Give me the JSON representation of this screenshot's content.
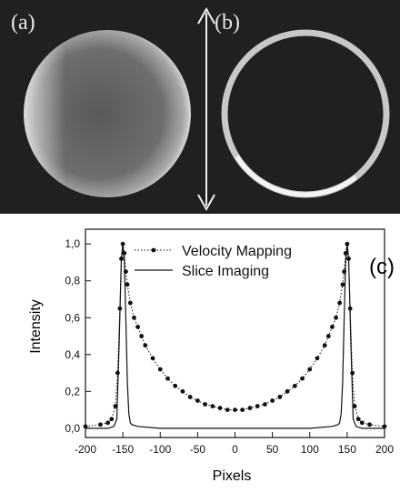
{
  "images": {
    "panel_a_label": "(a)",
    "panel_b_label": "(b)"
  },
  "chart_data": {
    "type": "line",
    "panel_label": "(c)",
    "xlabel": "Pixels",
    "ylabel": "Intensity",
    "xlim": [
      -200,
      200
    ],
    "ylim": [
      -0.05,
      1.08
    ],
    "x_ticks": [
      -200,
      -150,
      -100,
      -50,
      0,
      50,
      100,
      150,
      200
    ],
    "x_tick_labels": [
      "-200",
      "-150",
      "-100",
      "-50",
      "0",
      "50",
      "100",
      "150",
      "200"
    ],
    "y_ticks": [
      0.0,
      0.2,
      0.4,
      0.6,
      0.8,
      1.0
    ],
    "y_tick_labels": [
      "0,0",
      "0,2",
      "0,4",
      "0,6",
      "0,8",
      "1,0"
    ],
    "grid": false,
    "legend_position": "top-right",
    "series": [
      {
        "name": "Velocity Mapping",
        "style": "dotted-with-markers",
        "x": [
          -200,
          -180,
          -170,
          -165,
          -160,
          -157,
          -154,
          -152,
          -150,
          -148,
          -146,
          -144,
          -140,
          -135,
          -130,
          -125,
          -120,
          -110,
          -100,
          -90,
          -80,
          -70,
          -60,
          -50,
          -40,
          -30,
          -20,
          -10,
          0,
          10,
          20,
          30,
          40,
          50,
          60,
          70,
          80,
          90,
          100,
          110,
          120,
          125,
          130,
          135,
          140,
          144,
          146,
          148,
          150,
          152,
          154,
          157,
          160,
          165,
          170,
          180,
          200
        ],
        "y": [
          0.01,
          0.02,
          0.03,
          0.05,
          0.12,
          0.3,
          0.65,
          0.92,
          1.0,
          0.95,
          0.85,
          0.78,
          0.68,
          0.6,
          0.55,
          0.5,
          0.45,
          0.38,
          0.32,
          0.27,
          0.23,
          0.2,
          0.17,
          0.15,
          0.13,
          0.12,
          0.11,
          0.1,
          0.1,
          0.1,
          0.11,
          0.12,
          0.13,
          0.15,
          0.17,
          0.2,
          0.23,
          0.27,
          0.32,
          0.38,
          0.45,
          0.5,
          0.55,
          0.6,
          0.68,
          0.78,
          0.85,
          0.95,
          1.0,
          0.92,
          0.65,
          0.3,
          0.12,
          0.05,
          0.03,
          0.02,
          0.01
        ]
      },
      {
        "name": "Slice Imaging",
        "style": "solid",
        "x": [
          -200,
          -170,
          -162,
          -158,
          -155,
          -152,
          -150,
          -148,
          -146,
          -144,
          -142,
          -140,
          -138,
          -130,
          -100,
          0,
          100,
          130,
          138,
          140,
          142,
          144,
          146,
          148,
          150,
          152,
          155,
          158,
          162,
          170,
          200
        ],
        "y": [
          0.0,
          0.0,
          0.01,
          0.05,
          0.45,
          0.92,
          1.0,
          0.9,
          0.6,
          0.25,
          0.08,
          0.03,
          0.02,
          0.01,
          0.0,
          0.0,
          0.0,
          0.01,
          0.02,
          0.03,
          0.08,
          0.25,
          0.6,
          0.9,
          1.0,
          0.92,
          0.45,
          0.05,
          0.01,
          0.0,
          0.0
        ]
      }
    ]
  }
}
